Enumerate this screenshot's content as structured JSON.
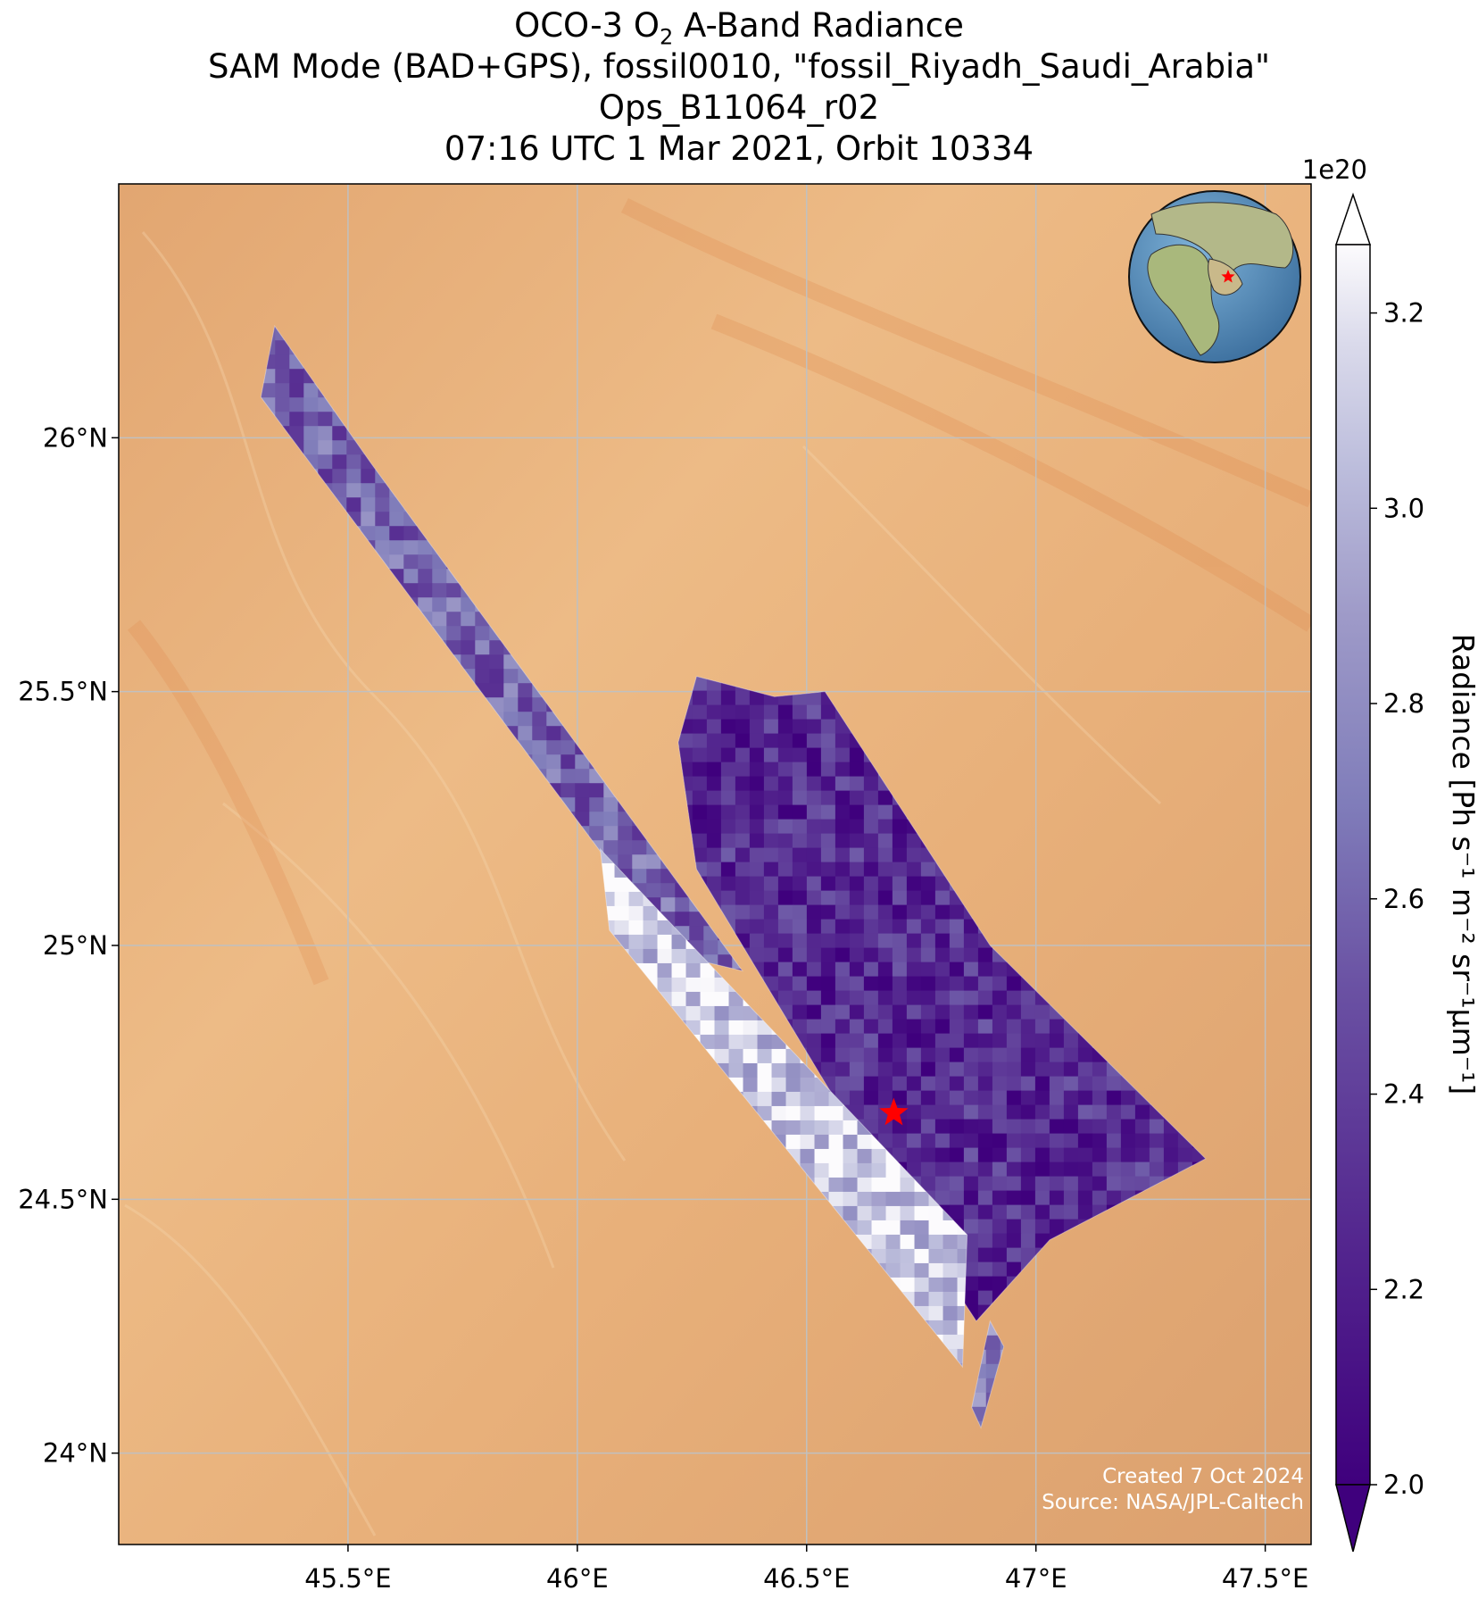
{
  "title": {
    "line1_pre": "OCO-3 O",
    "line1_sub": "2",
    "line1_post": " A-Band Radiance",
    "line2": "SAM Mode (BAD+GPS), fossil0010, \"fossil_Riyadh_Saudi_Arabia\"",
    "line3": "Ops_B11064_r02",
    "line4": "07:16 UTC 1 Mar 2021, Orbit 10334"
  },
  "colors": {
    "desert": "#e9a868",
    "desert_light": "#efc08c",
    "grid": "#c0c0c0",
    "cmap_low": "#3f007d",
    "cmap_mid": "#7e75b5",
    "cmap_high": "#fcfbfd",
    "target_star": "#ff0000",
    "ocean": "#5a8fbf",
    "land": "#a9b87c"
  },
  "credit": {
    "created": "Created 7 Oct 2024",
    "source": "Source: NASA/JPL-Caltech"
  },
  "chart_data": {
    "type": "heatmap",
    "title": "OCO-3 O2 A-Band Radiance",
    "xlabel": "",
    "ylabel": "",
    "xlim": [
      45.0,
      47.6
    ],
    "ylim": [
      23.82,
      26.5
    ],
    "x_ticks": [
      45.5,
      46.0,
      46.5,
      47.0,
      47.5
    ],
    "x_tick_labels": [
      "45.5°E",
      "46°E",
      "46.5°E",
      "47°E",
      "47.5°E"
    ],
    "y_ticks": [
      24.0,
      24.5,
      25.0,
      25.5,
      26.0
    ],
    "y_tick_labels": [
      "24°N",
      "24.5°N",
      "25°N",
      "25.5°N",
      "26°N"
    ],
    "grid": true,
    "colorbar": {
      "label": "Radiance [Ph s⁻¹ m⁻² sr⁻¹μm⁻¹]",
      "scale_label": "1e20",
      "min": 2.0,
      "max": 3.2,
      "ticks": [
        2.0,
        2.2,
        2.4,
        2.6,
        2.8,
        3.0,
        3.2
      ],
      "tick_labels": [
        "2.0",
        "2.2",
        "2.4",
        "2.6",
        "2.8",
        "3.0",
        "3.2"
      ],
      "extend": "both",
      "cmap": "Purples_r"
    },
    "target": {
      "name": "fossil_Riyadh_Saudi_Arabia",
      "lon": 46.69,
      "lat": 24.67
    },
    "swaths": [
      {
        "name": "swath-north-strip",
        "polygon": [
          [
            45.34,
            26.22
          ],
          [
            45.55,
            25.95
          ],
          [
            46.36,
            24.95
          ],
          [
            46.22,
            24.98
          ],
          [
            45.31,
            26.08
          ]
        ],
        "mean_radiance": 2.55
      },
      {
        "name": "swath-main-block",
        "polygon": [
          [
            46.26,
            25.53
          ],
          [
            46.43,
            25.49
          ],
          [
            46.54,
            25.5
          ],
          [
            46.9,
            25.0
          ],
          [
            47.37,
            24.58
          ],
          [
            47.03,
            24.42
          ],
          [
            46.87,
            24.26
          ],
          [
            46.66,
            24.55
          ],
          [
            46.26,
            25.15
          ],
          [
            46.22,
            25.4
          ]
        ],
        "mean_radiance": 2.25
      },
      {
        "name": "swath-west-strip",
        "polygon": [
          [
            46.05,
            25.19
          ],
          [
            46.07,
            25.03
          ],
          [
            46.84,
            24.17
          ],
          [
            46.85,
            24.43
          ],
          [
            46.06,
            25.18
          ]
        ],
        "mean_radiance": 3.05
      },
      {
        "name": "swath-south-fragment",
        "polygon": [
          [
            46.9,
            24.26
          ],
          [
            46.93,
            24.21
          ],
          [
            46.88,
            24.05
          ],
          [
            46.86,
            24.09
          ]
        ],
        "mean_radiance": 2.7
      }
    ]
  },
  "inset": {
    "label": "globe-inset",
    "center_lon": 46.69,
    "center_lat": 24.67
  }
}
